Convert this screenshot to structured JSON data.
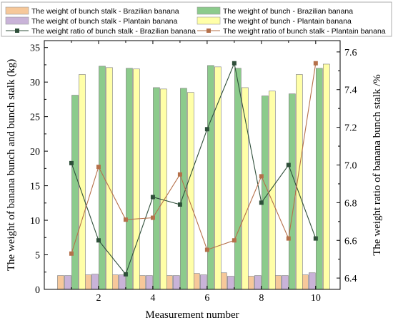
{
  "chart_data": {
    "type": "bar",
    "xlabel": "Measurement number",
    "ylabel_left": "The weight of banana bunch and bunch stalk (kg)",
    "ylabel_right": "The weight ratio of banana bunch stalk /%",
    "x": [
      1,
      2,
      3,
      4,
      5,
      6,
      7,
      8,
      9,
      10
    ],
    "x_ticks": [
      2,
      4,
      6,
      8,
      10
    ],
    "xlim": [
      0,
      10.9
    ],
    "ylim_left": [
      0,
      36
    ],
    "yticks_left": [
      0,
      5,
      10,
      15,
      20,
      25,
      30,
      35
    ],
    "ylim_right": [
      6.34,
      7.66
    ],
    "yticks_right": [
      6.4,
      6.6,
      6.8,
      7.0,
      7.2,
      7.4,
      7.6
    ],
    "legend_position": "top",
    "grid": false,
    "bar_series": [
      {
        "name": "The weight of bunch stalk - Brazilian banana",
        "color": "#f6c89a",
        "values": [
          2.0,
          2.1,
          2.1,
          2.0,
          2.0,
          2.3,
          2.4,
          1.9,
          2.0,
          2.1
        ]
      },
      {
        "name": "The weight of bunch stalk - Plantain banana",
        "color": "#c9b3d8",
        "values": [
          2.0,
          2.2,
          2.1,
          2.0,
          2.0,
          2.1,
          1.9,
          2.0,
          2.0,
          2.4
        ]
      },
      {
        "name": "The weight of bunch - Brazilian banana",
        "color": "#8ccb8c",
        "values": [
          28.1,
          32.3,
          32.0,
          29.2,
          29.1,
          32.4,
          32.0,
          28.0,
          28.3,
          32.0
        ]
      },
      {
        "name": "The weight of bunch - Plantain banana",
        "color": "#ffffa8",
        "values": [
          31.1,
          32.1,
          31.9,
          29.0,
          28.5,
          32.2,
          29.2,
          28.7,
          31.1,
          32.6
        ]
      }
    ],
    "line_series": [
      {
        "name": "The weight ratio of bunch stalk - Brazilian banana",
        "color": "#2f4f3a",
        "marker": "#2f4f3a",
        "values": [
          7.01,
          6.6,
          6.42,
          6.83,
          6.79,
          7.19,
          7.54,
          6.8,
          7.0,
          6.61
        ]
      },
      {
        "name": "The weight ratio of bunch stalk - Plantain banana",
        "color": "#b5704a",
        "marker": "#b5704a",
        "values": [
          6.53,
          6.99,
          6.71,
          6.72,
          6.95,
          6.55,
          6.6,
          6.94,
          6.61,
          7.54
        ]
      }
    ]
  }
}
